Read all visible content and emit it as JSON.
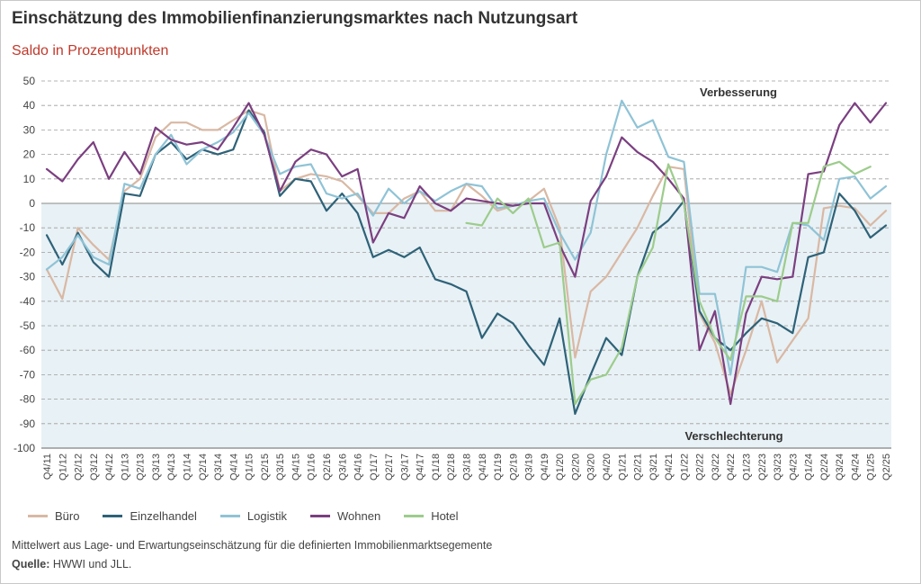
{
  "title": "Einschätzung des Immobilienfinanzierungsmarktes nach Nutzungsart",
  "subtitle": "Saldo in Prozentpunkten",
  "note": "Mittelwert aus Lage- und Erwartungseinschätzung für die definierten Immobilienmarktsegemente",
  "source_label": "Quelle:",
  "source_text": " HWWI und JLL.",
  "colors": {
    "negative_area": "#e8f1f5",
    "grid": "#9e9e9e",
    "zero_line": "#888888",
    "axis_text": "#444444"
  },
  "chart_data": {
    "type": "line",
    "ylim": [
      -100,
      50
    ],
    "yticks": [
      50,
      40,
      30,
      20,
      10,
      0,
      -10,
      -20,
      -30,
      -40,
      -50,
      -60,
      -70,
      -80,
      -90,
      -100
    ],
    "grid": "horizontal dashed",
    "legend_position": "bottom",
    "annotations": {
      "top": "Verbesserung",
      "bottom": "Verschlechterung"
    },
    "categories": [
      "Q4/11",
      "Q1/12",
      "Q2/12",
      "Q3/12",
      "Q4/12",
      "Q1/13",
      "Q2/13",
      "Q3/13",
      "Q4/13",
      "Q1/14",
      "Q2/14",
      "Q3/14",
      "Q4/14",
      "Q1/15",
      "Q2/15",
      "Q3/15",
      "Q4/15",
      "Q1/16",
      "Q2/16",
      "Q3/16",
      "Q4/16",
      "Q1/17",
      "Q2/17",
      "Q3/17",
      "Q4/17",
      "Q1/18",
      "Q2/18",
      "Q3/18",
      "Q4/18",
      "Q1/19",
      "Q2/19",
      "Q3/19",
      "Q4/19",
      "Q1/20",
      "Q2/20",
      "Q3/20",
      "Q4/20",
      "Q1/21",
      "Q2/21",
      "Q3/21",
      "Q4/21",
      "Q1/22",
      "Q2/22",
      "Q3/22",
      "Q4/22",
      "Q1/23",
      "Q2/23",
      "Q3/23",
      "Q4/23",
      "Q1/24",
      "Q2/24",
      "Q3/24",
      "Q4/24",
      "Q1/25",
      "Q2/25"
    ],
    "tick_labels": [
      "Q4/11",
      "Q1/12",
      "Q2/12",
      "Q3/12",
      "Q4/12",
      "Q1/13",
      "Q2/13",
      "Q3/13",
      "Q4/13",
      "Q1/14",
      "Q2/14",
      "Q3/14",
      "Q4/14",
      "Q1/15",
      "Q2/15",
      "Q3/15",
      "Q4/15",
      "Q1/16",
      "Q2/16",
      "Q3/16",
      "Q4/16",
      "Q1/17",
      "Q2/17",
      "Q3/17",
      "Q4/17",
      "Q1/18",
      "Q2/18",
      "Q3/18",
      "Q4/18",
      "Q1/19",
      "Q2/19",
      "Q3/19",
      "Q4/19",
      "Q1/20",
      "Q2/20",
      "Q3/20",
      "Q4/20",
      "Q1/21",
      "Q2/21",
      "Q3/21",
      "Q4/21",
      "Q1/22",
      "Q2/22",
      "Q3/22",
      "Q4/22",
      "Q1/23",
      "Q2/23",
      "Q3/23",
      "Q4/23",
      "Q1/24",
      "Q2/24",
      "Q3/24",
      "Q4/24",
      "Q1/25",
      "Q2/25"
    ],
    "series": [
      {
        "name": "Büro",
        "color": "#d9b8a4",
        "values": [
          -27,
          -39,
          -10,
          -17,
          -23,
          5,
          10,
          27,
          33,
          33,
          30,
          30,
          34,
          38,
          36,
          5,
          10,
          12,
          11,
          9,
          3,
          -4,
          -4,
          2,
          5,
          -3,
          -3,
          8,
          3,
          -3,
          -1,
          1,
          6,
          -10,
          -63,
          -36,
          -30,
          -20,
          -10,
          3,
          15,
          14,
          -45,
          -57,
          -78,
          -60,
          -40,
          -65,
          -56,
          -47,
          -2,
          -1,
          -2,
          -9,
          -3
        ]
      },
      {
        "name": "Einzelhandel",
        "color": "#2e6278",
        "values": [
          -13,
          -25,
          -12,
          -24,
          -30,
          4,
          3,
          20,
          25,
          18,
          22,
          20,
          22,
          38,
          29,
          3,
          10,
          9,
          -3,
          4,
          -4,
          -22,
          -19,
          -22,
          -18,
          -31,
          -33,
          -36,
          -55,
          -45,
          -49,
          -58,
          -66,
          -47,
          -86,
          -70,
          -55,
          -62,
          -30,
          -12,
          -7,
          1,
          -44,
          -55,
          -60,
          -53,
          -47,
          -49,
          -53,
          -22,
          -20,
          4,
          -3,
          -14,
          -9
        ]
      },
      {
        "name": "Logistik",
        "color": "#8fc3d6",
        "values": [
          -27,
          -22,
          -13,
          -22,
          -25,
          8,
          6,
          20,
          28,
          16,
          22,
          25,
          29,
          37,
          28,
          12,
          15,
          16,
          4,
          2,
          4,
          -5,
          6,
          0,
          5,
          1,
          5,
          8,
          7,
          -2,
          -1,
          1,
          2,
          -12,
          -23,
          -12,
          20,
          42,
          31,
          34,
          19,
          17,
          -37,
          -37,
          -70,
          -26,
          -26,
          -28,
          -8,
          -9,
          -15,
          10,
          11,
          2,
          7
        ]
      },
      {
        "name": "Wohnen",
        "color": "#7b3f80",
        "values": [
          14,
          9,
          18,
          25,
          10,
          21,
          12,
          31,
          26,
          24,
          25,
          22,
          31,
          41,
          28,
          5,
          17,
          22,
          20,
          11,
          14,
          -16,
          -4,
          -6,
          7,
          0,
          -3,
          2,
          1,
          0,
          -1,
          0,
          0,
          -17,
          -30,
          1,
          11,
          27,
          21,
          17,
          10,
          2,
          -60,
          -44,
          -82,
          -45,
          -30,
          -31,
          -30,
          12,
          13,
          32,
          41,
          33,
          41
        ]
      },
      {
        "name": "Hotel",
        "color": "#9ccc8c",
        "values": [
          null,
          null,
          null,
          null,
          null,
          null,
          null,
          null,
          null,
          null,
          null,
          null,
          null,
          null,
          null,
          null,
          null,
          null,
          null,
          null,
          null,
          null,
          null,
          null,
          null,
          null,
          null,
          -8,
          -9,
          2,
          -4,
          2,
          -18,
          -16,
          -82,
          -72,
          -70,
          -59,
          -30,
          -18,
          16,
          0,
          -40,
          -55,
          -64,
          -38,
          -38,
          -40,
          -8,
          -8,
          15,
          17,
          12,
          15,
          null
        ]
      }
    ]
  }
}
